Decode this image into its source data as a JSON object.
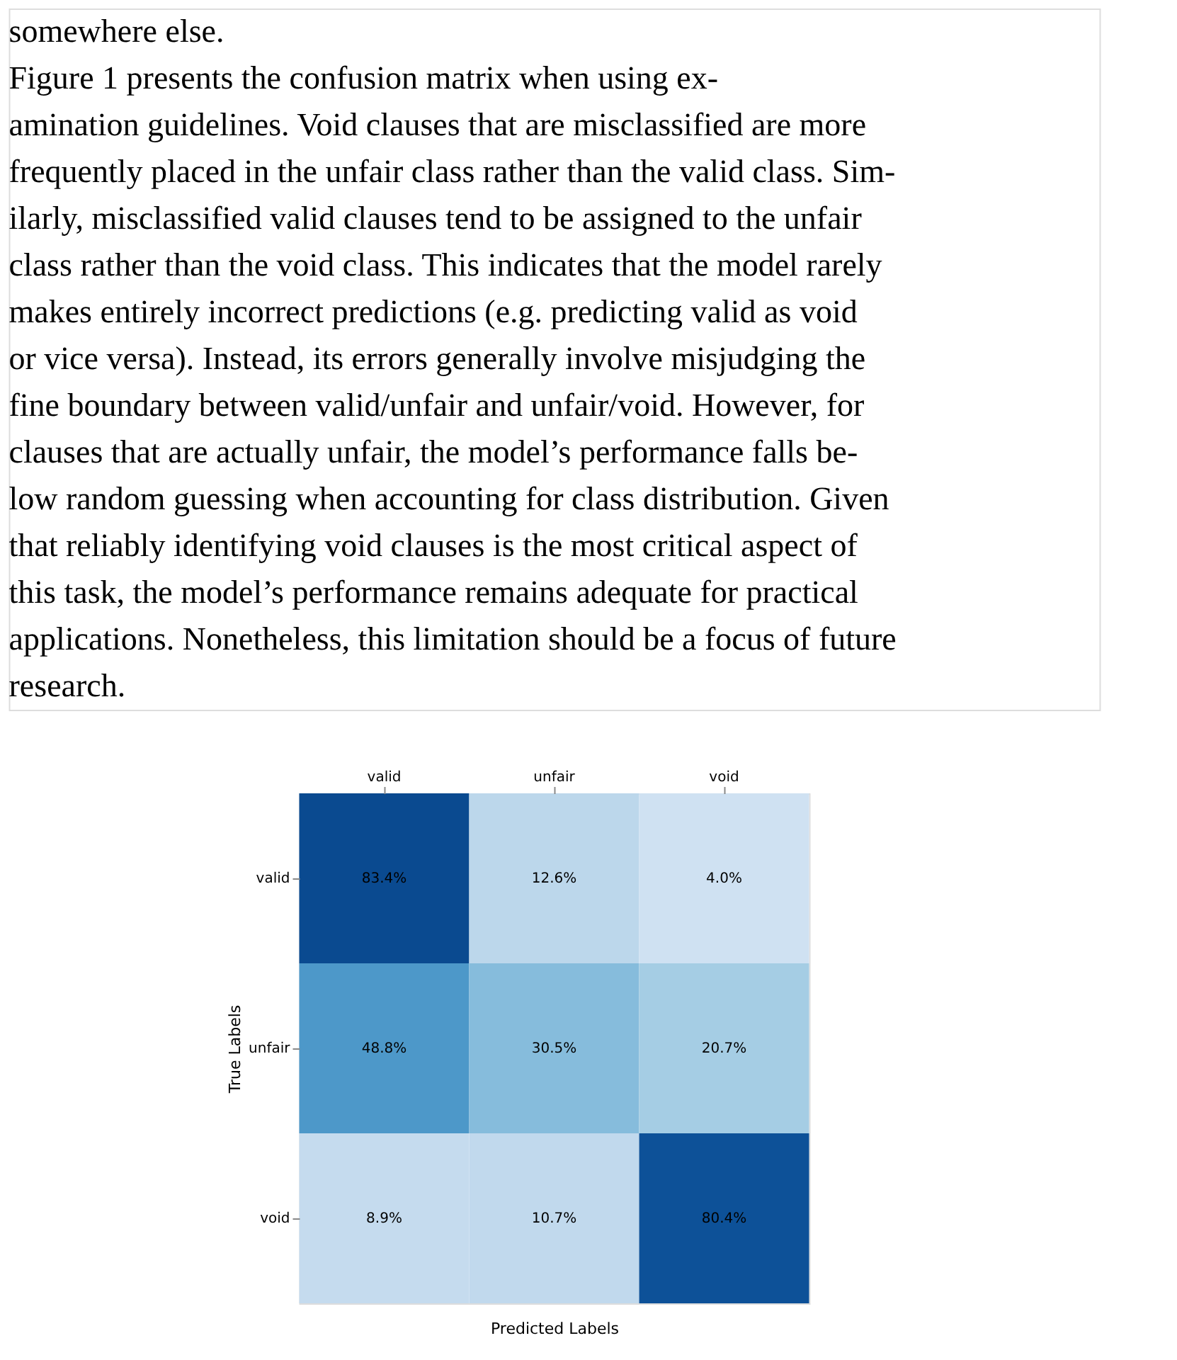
{
  "chart_data": {
    "type": "heatmap",
    "xlabel": "Predicted Labels",
    "ylabel": "True Labels",
    "annotations": [
      "somewhere else.",
      "Figure 1 presents the confusion matrix when using ex-",
      "amination guidelines. Void clauses that are misclassified are more",
      "frequently placed in the unfair class rather than the valid class. Sim-",
      "ilarly, misclassified valid clauses tend to be assigned to the unfair",
      "class rather than the void class. This indicates that the model rarely",
      "makes entirely incorrect predictions (e.g. predicting valid as void",
      "or vice versa). Instead, its errors generally involve misjudging the",
      "fine boundary between valid/unfair and unfair/void. However, for",
      "clauses that are actually unfair, the model’s performance falls be-",
      "low random guessing when accounting for class distribution. Given",
      "that reliably identifying void clauses is the most critical aspect of",
      "this task, the model’s performance remains adequate for practical",
      "applications. Nonetheless, this limitation should be a focus of future",
      "research."
    ],
    "categories": [
      "valid",
      "unfair",
      "void"
    ],
    "y_categories": [
      "valid",
      "unfair",
      "void"
    ],
    "cells": [
      [
        83.4,
        12.6,
        4.0
      ],
      [
        48.8,
        30.5,
        20.7
      ],
      [
        8.9,
        10.7,
        80.4
      ]
    ],
    "cell_labels": [
      [
        "83.4%",
        "12.6%",
        "4.0%"
      ],
      [
        "48.8%",
        "30.5%",
        "20.7%"
      ],
      [
        "8.9%",
        "10.7%",
        "80.4%"
      ]
    ]
  }
}
